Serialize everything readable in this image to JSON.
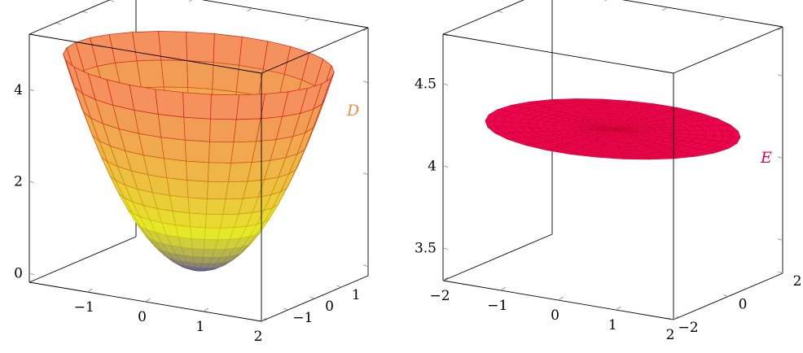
{
  "chart_data": [
    {
      "type": "surface3d",
      "surface_label": "D",
      "label_color": "#f08a4b",
      "equation": "z = x^2 + y^2 over the disk r <= sqrt(4.5)",
      "r_max": 2.121,
      "x_range": [
        -2,
        2
      ],
      "y_range": [
        -2,
        2
      ],
      "z_range": [
        -0.2,
        5.2
      ],
      "x_ticks": [
        {
          "v": -1,
          "label": "−1"
        },
        {
          "v": 0,
          "label": "0"
        },
        {
          "v": 1,
          "label": "1"
        },
        {
          "v": 2,
          "label": "2"
        }
      ],
      "y_ticks": [
        {
          "v": -1,
          "label": "−1"
        },
        {
          "v": 0,
          "label": "0"
        },
        {
          "v": 1,
          "label": "1"
        }
      ],
      "z_ticks": [
        {
          "v": 0,
          "label": "0"
        },
        {
          "v": 2,
          "label": "2"
        },
        {
          "v": 4,
          "label": "4"
        }
      ],
      "colormap": [
        "#3b2bb3",
        "#e6e62a",
        "#f58b61"
      ],
      "mesh_color": "#dd1111",
      "grid": false
    },
    {
      "type": "surface3d",
      "surface_label": "E",
      "label_color": "#e0004f",
      "equation": "z = 4.2 constant disk of radius 2",
      "r_max": 2.0,
      "z_value": 4.2,
      "x_range": [
        -2,
        2
      ],
      "y_range": [
        -2,
        2
      ],
      "z_range": [
        3.3,
        4.8
      ],
      "x_ticks": [
        {
          "v": -2,
          "label": "−2"
        },
        {
          "v": -1,
          "label": "−1"
        },
        {
          "v": 0,
          "label": "0"
        },
        {
          "v": 1,
          "label": "1"
        },
        {
          "v": 2,
          "label": "2"
        }
      ],
      "y_ticks": [
        {
          "v": -2,
          "label": "−2"
        },
        {
          "v": 0,
          "label": "0"
        },
        {
          "v": 2,
          "label": "2"
        }
      ],
      "z_ticks": [
        {
          "v": 3.5,
          "label": "3.5"
        },
        {
          "v": 4,
          "label": "4"
        },
        {
          "v": 4.5,
          "label": "4.5"
        }
      ],
      "fill_color": "#ee0550",
      "mesh_color": "#cc0033",
      "grid": false
    }
  ]
}
